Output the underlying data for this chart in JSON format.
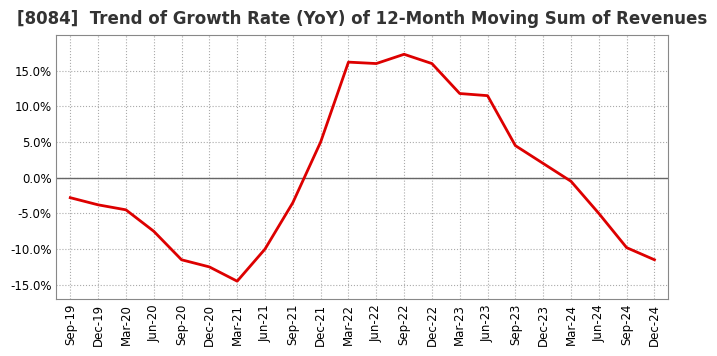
{
  "title": "[8084]  Trend of Growth Rate (YoY) of 12-Month Moving Sum of Revenues",
  "line_color": "#dd0000",
  "background_color": "#ffffff",
  "grid_color": "#aaaaaa",
  "zero_line_color": "#666666",
  "border_color": "#888888",
  "x_labels": [
    "Sep-19",
    "Dec-19",
    "Mar-20",
    "Jun-20",
    "Sep-20",
    "Dec-20",
    "Mar-21",
    "Jun-21",
    "Sep-21",
    "Dec-21",
    "Mar-22",
    "Jun-22",
    "Sep-22",
    "Dec-22",
    "Mar-23",
    "Jun-23",
    "Sep-23",
    "Dec-23",
    "Mar-24",
    "Jun-24",
    "Sep-24",
    "Dec-24"
  ],
  "y_values": [
    -2.8,
    -3.8,
    -4.5,
    -7.5,
    -11.5,
    -12.5,
    -14.5,
    -10.0,
    -3.5,
    5.0,
    16.2,
    16.0,
    17.3,
    16.0,
    11.8,
    11.5,
    4.5,
    2.0,
    -0.5,
    -5.0,
    -9.8,
    -11.5
  ],
  "ylim": [
    -17.0,
    20.0
  ],
  "yticks": [
    -15.0,
    -10.0,
    -5.0,
    0.0,
    5.0,
    10.0,
    15.0
  ],
  "title_fontsize": 12,
  "tick_fontsize": 8.5,
  "line_width": 2.0
}
